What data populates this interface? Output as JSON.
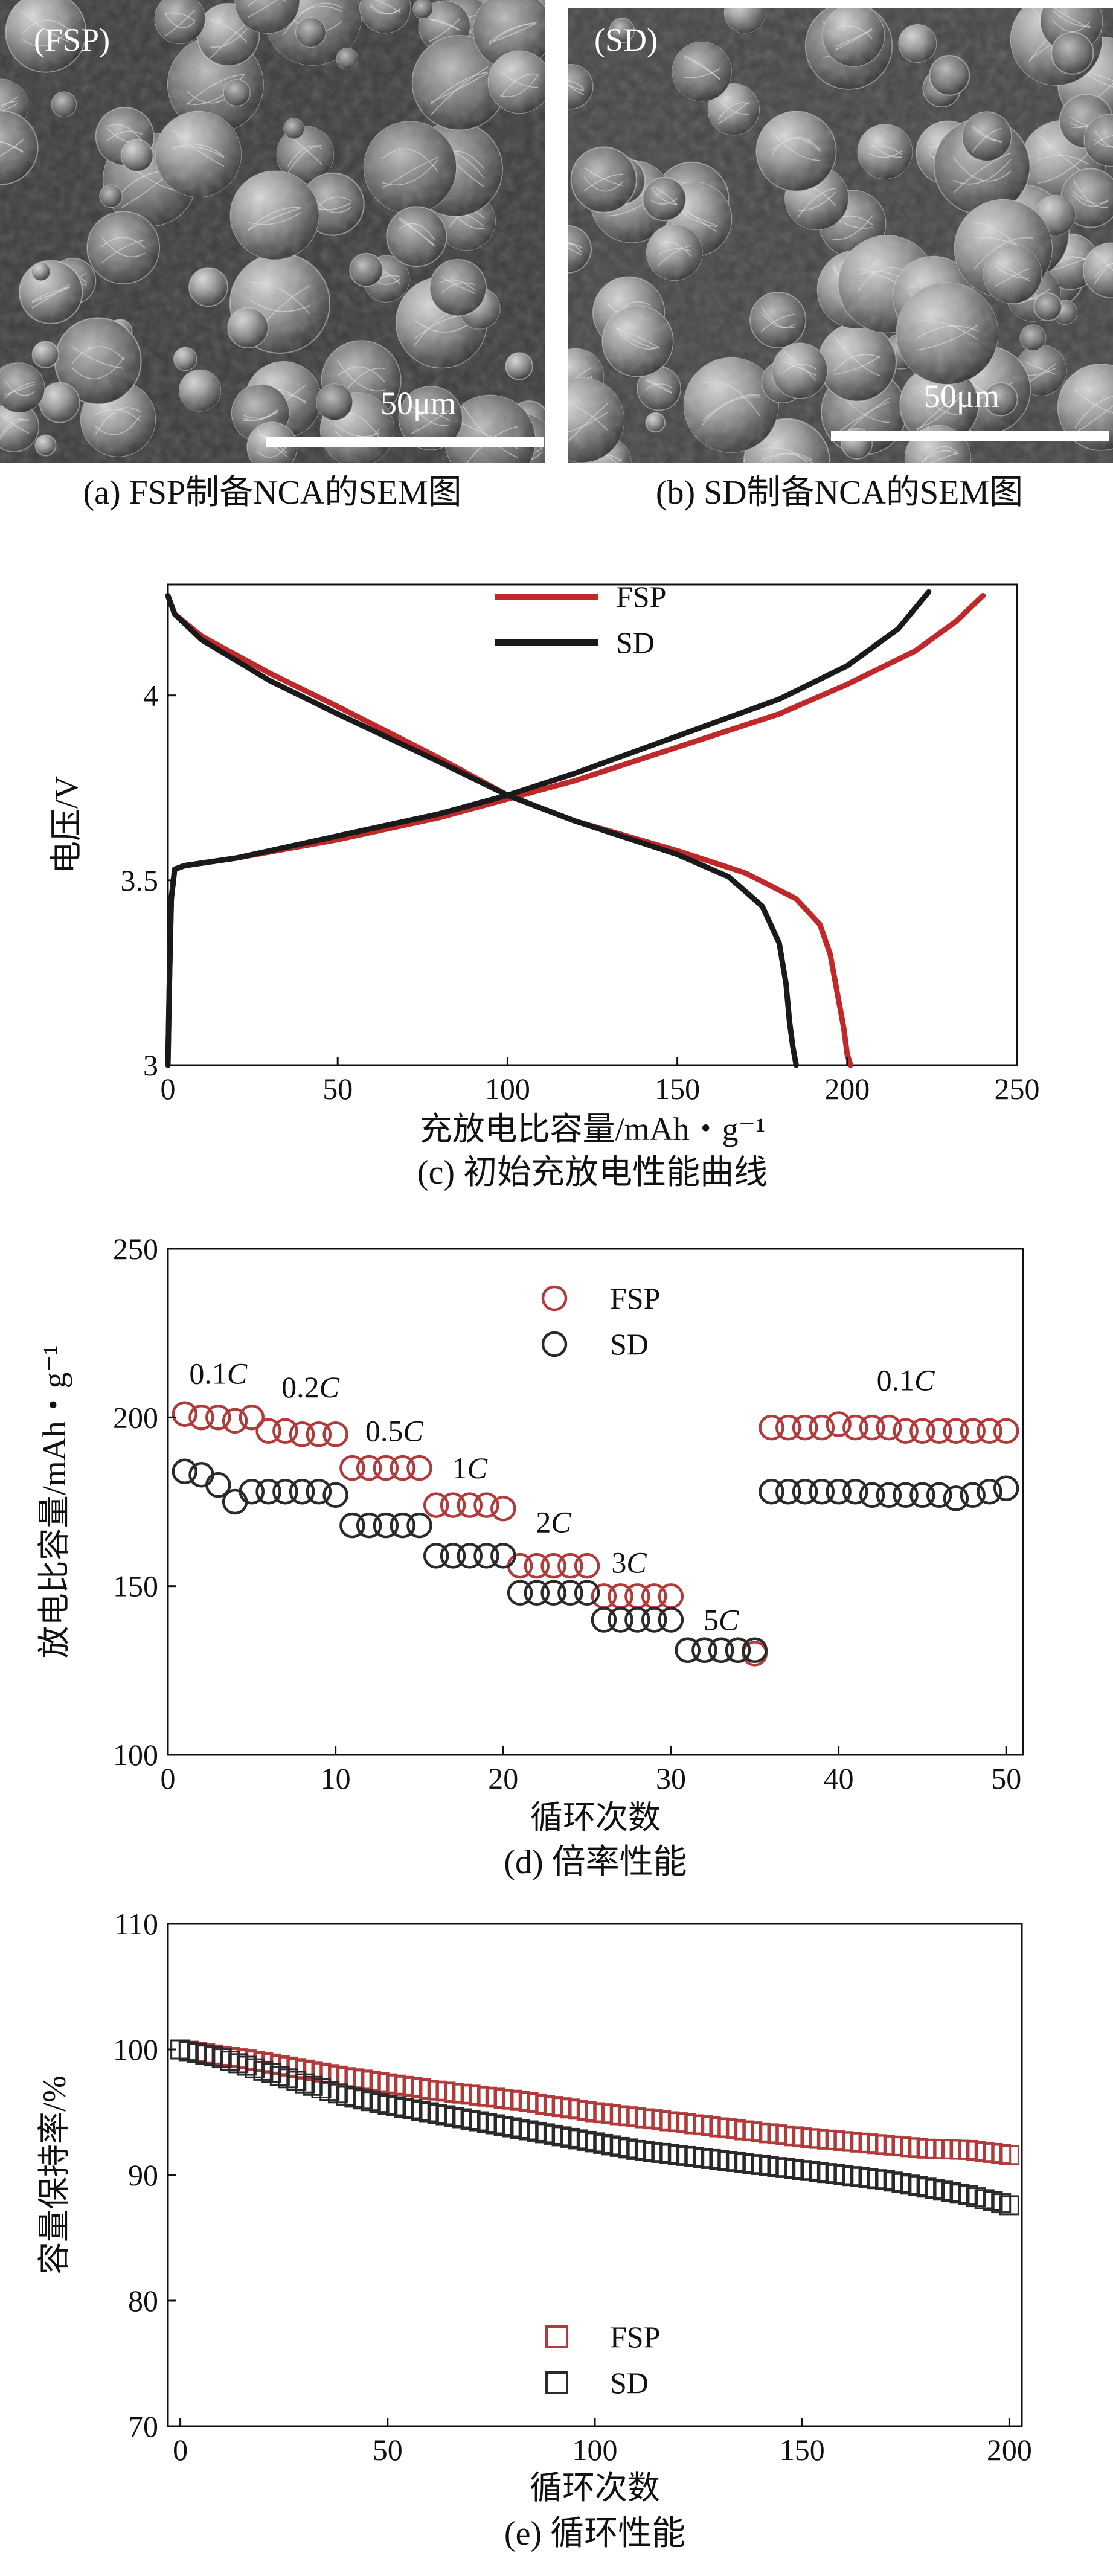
{
  "figure": {
    "sem_a": {
      "label": "(FSP)",
      "scale": "50μm",
      "caption": "(a) FSP制备NCA的SEM图"
    },
    "sem_b": {
      "label": "(SD)",
      "scale": "50μm",
      "caption": "(b) SD制备NCA的SEM图"
    },
    "colors": {
      "fsp": "#c0282a",
      "sd": "#1a1a1a",
      "fsp_marker": "#b23a3a",
      "sd_marker": "#2a2a2a"
    }
  },
  "chart_data": [
    {
      "id": "c",
      "type": "line",
      "title": "(c) 初始充放电性能曲线",
      "xlabel": "充放电比容量/mAh・g⁻¹",
      "ylabel": "电压/V",
      "xlim": [
        0,
        250
      ],
      "ylim": [
        3,
        4.3
      ],
      "xticks": [
        0,
        50,
        100,
        150,
        200,
        250
      ],
      "yticks": [
        3,
        3.5,
        4
      ],
      "ytick_labels": [
        "3",
        "3.5",
        "4"
      ],
      "legend": {
        "position": "top-center",
        "entries": [
          "FSP",
          "SD"
        ]
      },
      "series": [
        {
          "name": "FSP charge",
          "legend": "FSP",
          "color": "#c0282a",
          "x": [
            0,
            0.5,
            1,
            2,
            5,
            20,
            50,
            80,
            100,
            120,
            150,
            180,
            200,
            220,
            232,
            240
          ],
          "y": [
            3.0,
            3.25,
            3.45,
            3.53,
            3.54,
            3.56,
            3.61,
            3.67,
            3.72,
            3.77,
            3.86,
            3.95,
            4.03,
            4.12,
            4.2,
            4.27
          ]
        },
        {
          "name": "FSP discharge",
          "legend": "FSP",
          "color": "#c0282a",
          "x": [
            0,
            2,
            10,
            30,
            50,
            80,
            100,
            120,
            150,
            170,
            185,
            192,
            195,
            197,
            199,
            200,
            201
          ],
          "y": [
            4.27,
            4.22,
            4.16,
            4.06,
            3.97,
            3.83,
            3.73,
            3.66,
            3.58,
            3.52,
            3.45,
            3.38,
            3.3,
            3.2,
            3.1,
            3.03,
            3.0
          ]
        },
        {
          "name": "SD charge",
          "legend": "SD",
          "color": "#1a1a1a",
          "x": [
            0,
            0.5,
            1,
            2,
            5,
            20,
            50,
            80,
            100,
            120,
            150,
            180,
            200,
            215,
            224
          ],
          "y": [
            3.0,
            3.25,
            3.45,
            3.53,
            3.54,
            3.56,
            3.62,
            3.68,
            3.73,
            3.79,
            3.89,
            3.99,
            4.08,
            4.18,
            4.28
          ]
        },
        {
          "name": "SD discharge",
          "legend": "SD",
          "color": "#1a1a1a",
          "x": [
            0,
            2,
            10,
            30,
            50,
            80,
            100,
            120,
            150,
            165,
            175,
            180,
            182,
            183,
            184,
            185
          ],
          "y": [
            4.27,
            4.22,
            4.15,
            4.04,
            3.95,
            3.82,
            3.73,
            3.66,
            3.57,
            3.51,
            3.43,
            3.33,
            3.22,
            3.12,
            3.05,
            3.0
          ]
        }
      ]
    },
    {
      "id": "d",
      "type": "scatter",
      "title": "(d) 倍率性能",
      "xlabel": "循环次数",
      "ylabel": "放电比容量/mAh・g⁻¹",
      "xlim": [
        0,
        51
      ],
      "ylim": [
        100,
        250
      ],
      "xticks": [
        0,
        10,
        20,
        30,
        40,
        50
      ],
      "yticks": [
        100,
        150,
        200,
        250
      ],
      "legend": {
        "position": "top-center",
        "entries": [
          "FSP",
          "SD"
        ]
      },
      "annotations": [
        {
          "text": "0.1C",
          "x": 3,
          "y": 210
        },
        {
          "text": "0.2C",
          "x": 8.5,
          "y": 206
        },
        {
          "text": "0.5C",
          "x": 13.5,
          "y": 193
        },
        {
          "text": "1C",
          "x": 18,
          "y": 182
        },
        {
          "text": "2C",
          "x": 23,
          "y": 166
        },
        {
          "text": "3C",
          "x": 27.5,
          "y": 154
        },
        {
          "text": "5C",
          "x": 33,
          "y": 137
        },
        {
          "text": "0.1C",
          "x": 44,
          "y": 208
        }
      ],
      "series": [
        {
          "name": "FSP",
          "color": "#b23a3a",
          "x": [
            1,
            2,
            3,
            4,
            5,
            6,
            7,
            8,
            9,
            10,
            11,
            12,
            13,
            14,
            15,
            16,
            17,
            18,
            19,
            20,
            21,
            22,
            23,
            24,
            25,
            26,
            27,
            28,
            29,
            30,
            31,
            32,
            33,
            34,
            35,
            36,
            37,
            38,
            39,
            40,
            41,
            42,
            43,
            44,
            45,
            46,
            47,
            48,
            49,
            50
          ],
          "y": [
            201,
            200,
            200,
            199,
            200,
            196,
            196,
            195,
            195,
            195,
            185,
            185,
            185,
            185,
            185,
            174,
            174,
            174,
            174,
            173,
            156,
            156,
            156,
            156,
            156,
            147,
            147,
            147,
            147,
            147,
            131,
            131,
            131,
            131,
            130,
            197,
            197,
            197,
            197,
            198,
            197,
            197,
            197,
            196,
            196,
            196,
            196,
            196,
            196,
            196
          ]
        },
        {
          "name": "SD",
          "color": "#2a2a2a",
          "x": [
            1,
            2,
            3,
            4,
            5,
            6,
            7,
            8,
            9,
            10,
            11,
            12,
            13,
            14,
            15,
            16,
            17,
            18,
            19,
            20,
            21,
            22,
            23,
            24,
            25,
            26,
            27,
            28,
            29,
            30,
            31,
            32,
            33,
            34,
            35,
            36,
            37,
            38,
            39,
            40,
            41,
            42,
            43,
            44,
            45,
            46,
            47,
            48,
            49,
            50
          ],
          "y": [
            184,
            183,
            180,
            175,
            178,
            178,
            178,
            178,
            178,
            177,
            168,
            168,
            168,
            168,
            168,
            159,
            159,
            159,
            159,
            159,
            148,
            148,
            148,
            148,
            148,
            140,
            140,
            140,
            140,
            140,
            131,
            131,
            131,
            131,
            131,
            178,
            178,
            178,
            178,
            178,
            178,
            177,
            177,
            177,
            177,
            177,
            176,
            177,
            178,
            179
          ]
        }
      ]
    },
    {
      "id": "e",
      "type": "scatter",
      "title": "(e) 循环性能",
      "xlabel": "循环次数",
      "ylabel": "容量保持率/%",
      "xlim": [
        -3,
        203
      ],
      "ylim": [
        70,
        110
      ],
      "xticks": [
        0,
        50,
        100,
        150,
        200
      ],
      "yticks": [
        70,
        80,
        90,
        100,
        110
      ],
      "legend": {
        "position": "bottom-center",
        "entries": [
          "FSP",
          "SD"
        ]
      },
      "series": [
        {
          "name": "FSP",
          "color": "#b23a3a",
          "x": [
            0,
            10,
            20,
            30,
            40,
            50,
            60,
            70,
            80,
            90,
            100,
            110,
            120,
            130,
            140,
            150,
            160,
            170,
            180,
            190,
            200
          ],
          "y": [
            100,
            99.5,
            99.0,
            98.4,
            97.8,
            97.3,
            96.8,
            96.4,
            96.0,
            95.5,
            95.0,
            94.6,
            94.2,
            93.8,
            93.4,
            93.0,
            92.7,
            92.4,
            92.1,
            92.0,
            91.6
          ]
        },
        {
          "name": "SD",
          "color": "#2a2a2a",
          "x": [
            0,
            10,
            20,
            30,
            40,
            50,
            60,
            70,
            80,
            90,
            100,
            110,
            120,
            130,
            140,
            150,
            160,
            170,
            180,
            190,
            200
          ],
          "y": [
            100,
            99.3,
            98.3,
            97.3,
            96.3,
            95.6,
            95.0,
            94.4,
            93.8,
            93.2,
            92.6,
            92.0,
            91.6,
            91.2,
            90.8,
            90.4,
            90.0,
            89.6,
            89.0,
            88.4,
            87.6
          ]
        }
      ]
    }
  ]
}
